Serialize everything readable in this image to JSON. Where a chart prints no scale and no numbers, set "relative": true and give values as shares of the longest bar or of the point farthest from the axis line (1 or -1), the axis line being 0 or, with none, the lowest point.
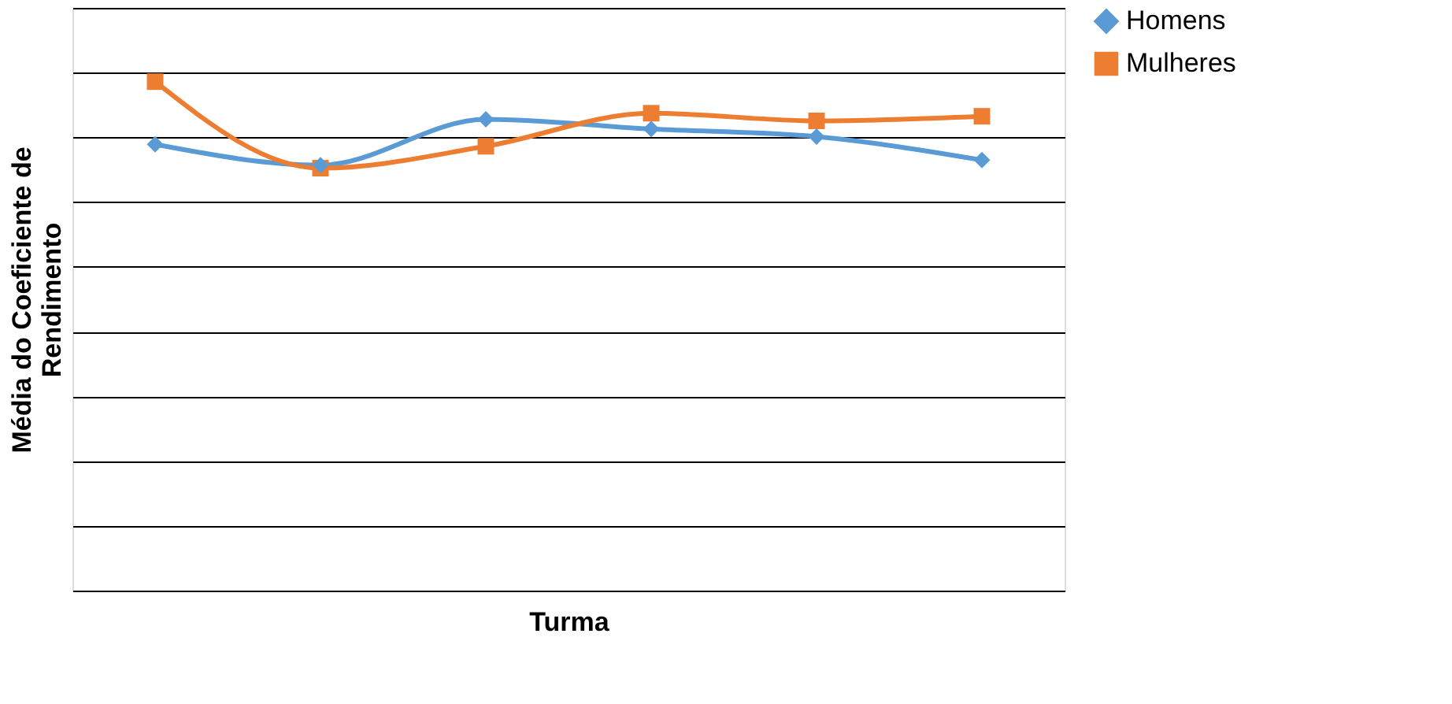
{
  "chart_data": {
    "type": "line",
    "relative": true,
    "xlabel": "Turma",
    "ylabel": "Média do Coeficiente de Rendimento",
    "categories": [
      null,
      null,
      null,
      null,
      null,
      null
    ],
    "series": [
      {
        "name": "Homens",
        "color": "#5b9bd5",
        "marker": "diamond",
        "values": [
          0.877,
          0.836,
          0.926,
          0.907,
          0.892,
          0.846
        ]
      },
      {
        "name": "Mulheres",
        "color": "#ed7d31",
        "marker": "square",
        "values": [
          1,
          0.83,
          0.873,
          0.938,
          0.923,
          0.932
        ]
      }
    ],
    "grid": "y",
    "legend": "right",
    "tick_labels": false,
    "line_style": "solid"
  }
}
